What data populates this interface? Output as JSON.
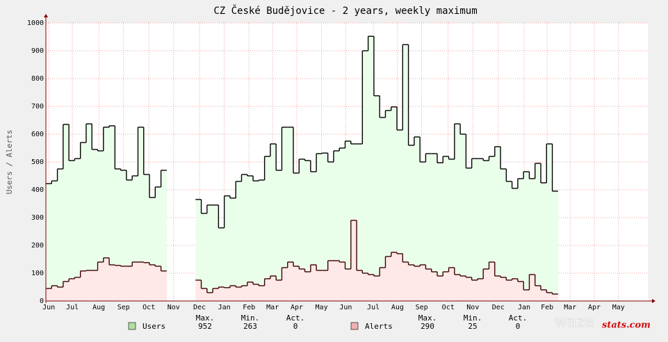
{
  "chart_data": {
    "type": "step-area",
    "title": "CZ České Budějovice - 2 years, weekly maximum",
    "y_label": "Users / Alerts",
    "x": [
      0,
      1,
      2,
      3,
      4,
      5,
      6,
      7,
      8,
      9,
      10,
      11,
      12,
      13,
      14,
      15,
      16,
      17,
      18,
      19,
      20,
      21,
      22,
      23,
      24,
      25,
      26,
      27,
      28,
      29,
      30,
      31,
      32,
      33,
      34,
      35,
      36,
      37,
      38,
      39,
      40,
      41,
      42,
      43,
      44,
      45,
      46,
      47,
      48,
      49,
      50,
      51,
      52,
      53,
      54,
      55,
      56,
      57,
      58,
      59,
      60,
      61,
      62,
      63,
      64,
      65,
      66,
      67,
      68,
      69,
      70,
      71,
      72,
      73,
      74,
      75,
      76,
      77,
      78,
      79,
      80,
      81,
      82,
      83,
      84,
      85,
      86,
      87,
      88
    ],
    "xlim": [
      0,
      104.6
    ],
    "xticks": [
      {
        "value": 0.5,
        "label": "Jun"
      },
      {
        "value": 4.6,
        "label": "Jul"
      },
      {
        "value": 9.2,
        "label": "Aug"
      },
      {
        "value": 13.5,
        "label": "Sep"
      },
      {
        "value": 17.9,
        "label": "Oct"
      },
      {
        "value": 22.2,
        "label": "Nov"
      },
      {
        "value": 26.7,
        "label": "Dec"
      },
      {
        "value": 31.0,
        "label": "Jan"
      },
      {
        "value": 35.3,
        "label": "Feb"
      },
      {
        "value": 39.4,
        "label": "Mar"
      },
      {
        "value": 43.6,
        "label": "Apr"
      },
      {
        "value": 47.9,
        "label": "May"
      },
      {
        "value": 52.1,
        "label": "Jun"
      },
      {
        "value": 56.9,
        "label": "Jul"
      },
      {
        "value": 61.1,
        "label": "Aug"
      },
      {
        "value": 65.3,
        "label": "Sep"
      },
      {
        "value": 69.9,
        "label": "Oct"
      },
      {
        "value": 74.2,
        "label": "Nov"
      },
      {
        "value": 78.6,
        "label": "Dec"
      },
      {
        "value": 83.1,
        "label": "Jan"
      },
      {
        "value": 87.1,
        "label": "Feb"
      },
      {
        "value": 91.1,
        "label": "Mar"
      },
      {
        "value": 95.3,
        "label": "Apr"
      },
      {
        "value": 99.5,
        "label": "May"
      }
    ],
    "ylim": [
      0,
      1000
    ],
    "yticks": [
      0,
      100,
      200,
      300,
      400,
      500,
      600,
      700,
      800,
      900,
      1000
    ],
    "grid": true,
    "stat_labels": [
      "Max.",
      "Min.",
      "Act."
    ],
    "series": [
      {
        "name": "Users",
        "color": "#eaffea",
        "swatch": "#b0e0a0",
        "line": "#000000",
        "stats": [
          952,
          263,
          0
        ],
        "values": [
          422,
          432,
          475,
          635,
          505,
          512,
          570,
          637,
          545,
          540,
          625,
          630,
          475,
          470,
          435,
          450,
          625,
          455,
          372,
          410,
          470,
          null,
          null,
          null,
          null,
          null,
          365,
          315,
          345,
          345,
          263,
          378,
          370,
          430,
          455,
          450,
          432,
          435,
          520,
          565,
          470,
          625,
          625,
          460,
          510,
          505,
          465,
          530,
          532,
          500,
          540,
          550,
          575,
          565,
          565,
          900,
          952,
          738,
          660,
          685,
          698,
          615,
          922,
          560,
          590,
          500,
          530,
          530,
          497,
          520,
          510,
          637,
          600,
          478,
          512,
          512,
          505,
          520,
          555,
          475,
          430,
          405,
          440,
          465,
          440,
          495,
          425,
          565,
          395
        ]
      },
      {
        "name": "Alerts",
        "color": "#ffe8e8",
        "swatch": "#f0b0b0",
        "line": "#400000",
        "stats": [
          290,
          25,
          0
        ],
        "values": [
          45,
          55,
          50,
          70,
          80,
          85,
          108,
          110,
          110,
          140,
          155,
          130,
          128,
          125,
          125,
          140,
          140,
          138,
          130,
          125,
          108,
          null,
          null,
          null,
          null,
          null,
          75,
          45,
          30,
          45,
          50,
          48,
          55,
          50,
          55,
          68,
          60,
          55,
          80,
          90,
          75,
          120,
          140,
          125,
          115,
          105,
          130,
          110,
          110,
          145,
          145,
          140,
          115,
          290,
          110,
          100,
          95,
          90,
          120,
          160,
          175,
          170,
          140,
          130,
          125,
          130,
          115,
          105,
          90,
          105,
          120,
          95,
          90,
          85,
          75,
          80,
          115,
          140,
          90,
          85,
          75,
          80,
          70,
          40,
          95,
          55,
          40,
          30,
          25
        ]
      }
    ],
    "logo": [
      "waze",
      "stats.com"
    ]
  }
}
